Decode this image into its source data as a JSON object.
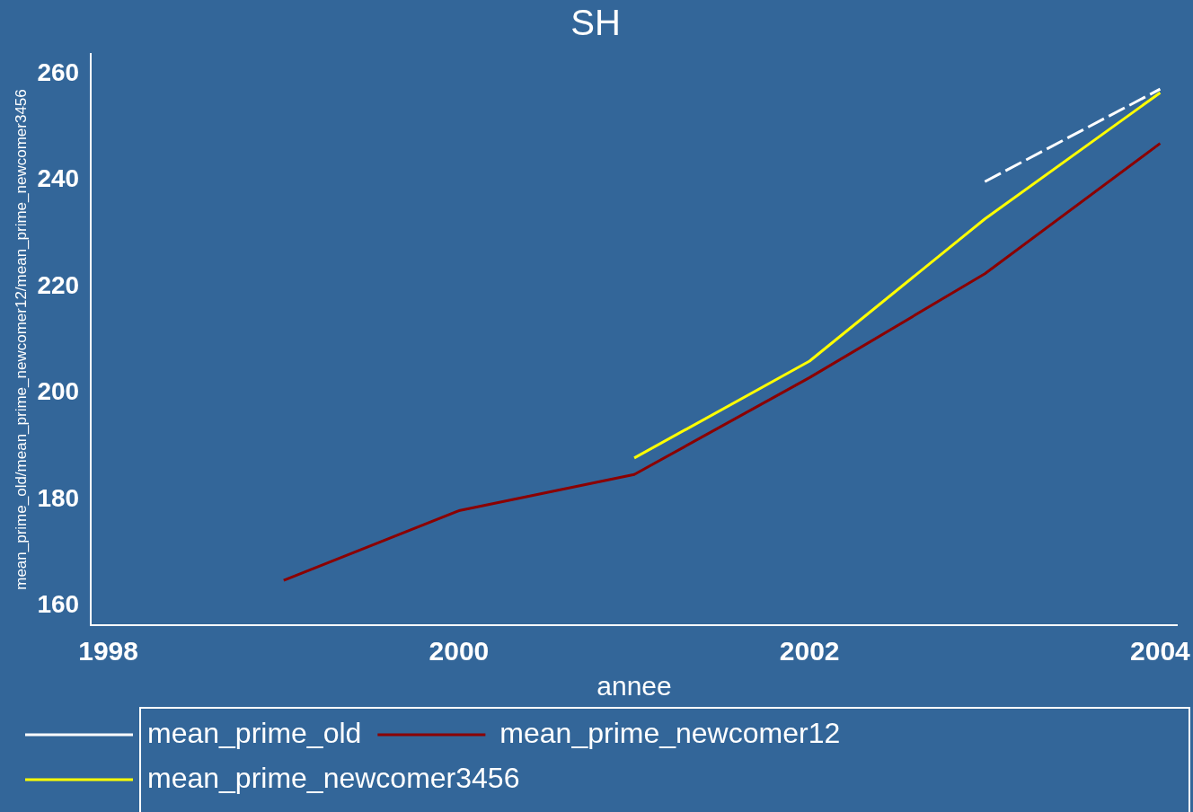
{
  "chart_data": {
    "type": "line",
    "title": "SH",
    "xlabel": "annee",
    "ylabel": "mean_prime_old/mean_prime_newcomer12/mean_prime_newcomer3456",
    "x": [
      1999,
      2000,
      2001,
      2002,
      2003,
      2004
    ],
    "series": [
      {
        "name": "mean_prime_old",
        "color": "#ffffff",
        "line_style": "dashed",
        "values": [
          null,
          null,
          null,
          null,
          239.7,
          257.1
        ]
      },
      {
        "name": "mean_prime_newcomer12",
        "color": "#8b0000",
        "line_style": "solid",
        "values": [
          164.8,
          177.9,
          184.7,
          202.9,
          222.4,
          246.9
        ]
      },
      {
        "name": "mean_prime_newcomer3456",
        "color": "#ffff00",
        "line_style": "solid",
        "values": [
          null,
          null,
          187.8,
          206.0,
          232.7,
          256.4
        ]
      }
    ],
    "xlim": [
      1997.9,
      2004.1
    ],
    "xticks": [
      1998,
      2000,
      2002,
      2004
    ],
    "ylim": [
      156.4,
      263.7
    ],
    "yticks": [
      160,
      180,
      200,
      220,
      240,
      260
    ],
    "grid": false,
    "legend": "bottom",
    "marker": "none"
  }
}
